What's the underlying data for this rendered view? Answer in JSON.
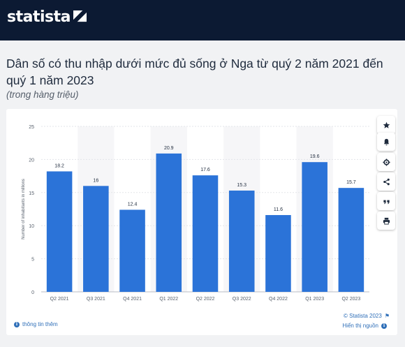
{
  "brand": {
    "name": "statista"
  },
  "title": "Dân số có thu nhập dưới mức đủ sống ở Nga từ quý 2 năm 2021 đến quý 1 năm 2023",
  "subtitle": "(trong hàng triệu)",
  "footer": {
    "more_info": "thông tin thêm",
    "copyright": "© Statista 2023",
    "source": "Hiển thị nguồn"
  },
  "toolbar": [
    {
      "name": "star-icon"
    },
    {
      "name": "bell-icon"
    },
    {
      "name": "gear-icon"
    },
    {
      "name": "share-icon"
    },
    {
      "name": "quote-icon"
    },
    {
      "name": "print-icon"
    }
  ],
  "colors": {
    "bar": "#2b73d8",
    "header": "#0c1a33",
    "link": "#2f6fb8"
  },
  "chart_data": {
    "type": "bar",
    "categories": [
      "Q2 2021",
      "Q3 2021",
      "Q4 2021",
      "Q1 2022",
      "Q2 2022",
      "Q3 2022",
      "Q4 2022",
      "Q1 2023",
      "Q2 2023"
    ],
    "values": [
      18.2,
      16,
      12.4,
      20.9,
      17.6,
      15.3,
      11.6,
      19.6,
      15.7
    ],
    "value_labels": [
      "18.2",
      "16",
      "12.4",
      "20.9",
      "17.6",
      "15.3",
      "11.6",
      "19.6",
      "15.7"
    ],
    "ylabel": "Number of inhabitants in millions",
    "ylim": [
      0,
      25
    ],
    "yticks": [
      0,
      5,
      10,
      15,
      20,
      25
    ],
    "grid": true
  }
}
